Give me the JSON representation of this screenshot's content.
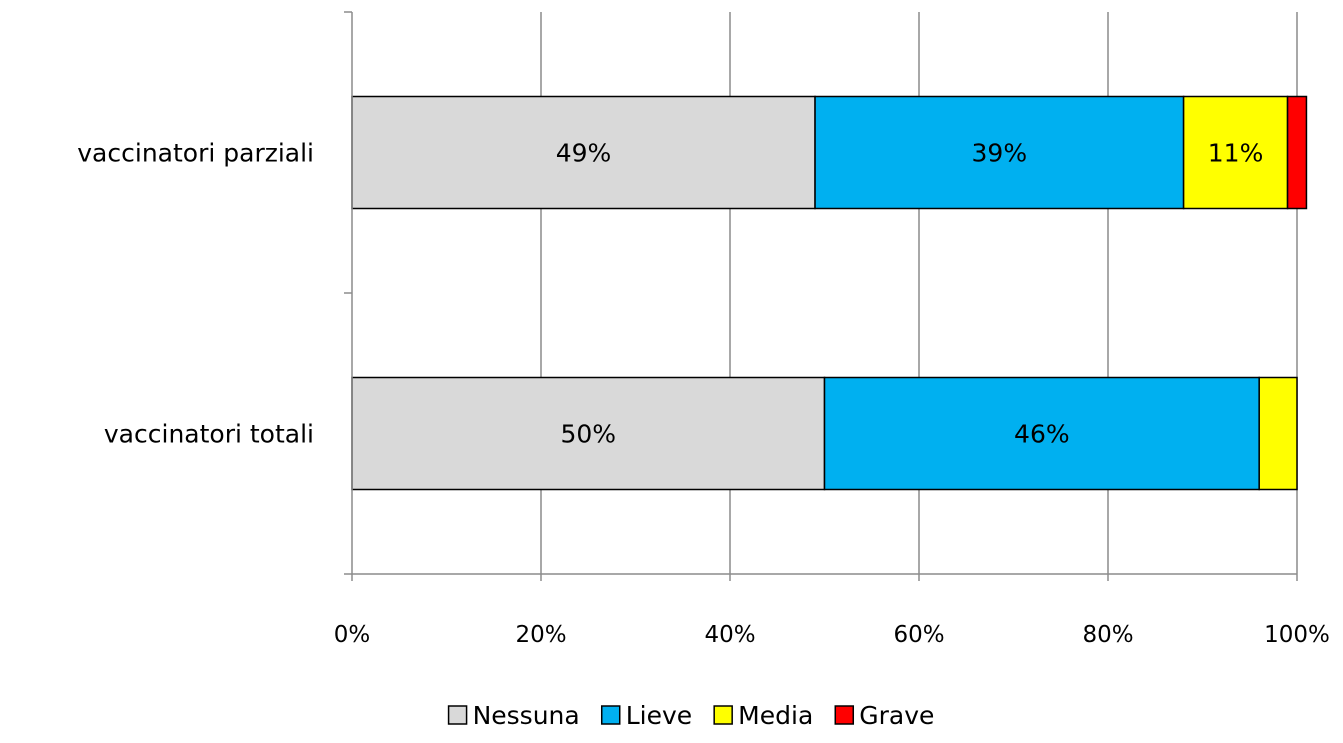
{
  "chart_data": {
    "type": "bar",
    "orientation": "horizontal",
    "stacked": "percent",
    "categories": [
      "vaccinatori parziali",
      "vaccinatori totali"
    ],
    "series": [
      {
        "name": "Nessuna",
        "color": "#d9d9d9",
        "values": [
          49,
          50
        ],
        "labels": [
          "49%",
          "50%"
        ]
      },
      {
        "name": "Lieve",
        "color": "#00b0f0",
        "values": [
          39,
          46
        ],
        "labels": [
          "39%",
          "46%"
        ]
      },
      {
        "name": "Media",
        "color": "#ffff00",
        "values": [
          11,
          4
        ],
        "labels": [
          "11%",
          ""
        ]
      },
      {
        "name": "Grave",
        "color": "#ff0000",
        "values": [
          2,
          0
        ],
        "labels": [
          "",
          ""
        ]
      }
    ],
    "xlim": [
      0,
      100
    ],
    "xticks": [
      0,
      20,
      40,
      60,
      80,
      100
    ],
    "xtick_labels": [
      "0%",
      "20%",
      "40%",
      "60%",
      "80%",
      "100%"
    ],
    "grid": "vertical",
    "legend_position": "bottom"
  }
}
